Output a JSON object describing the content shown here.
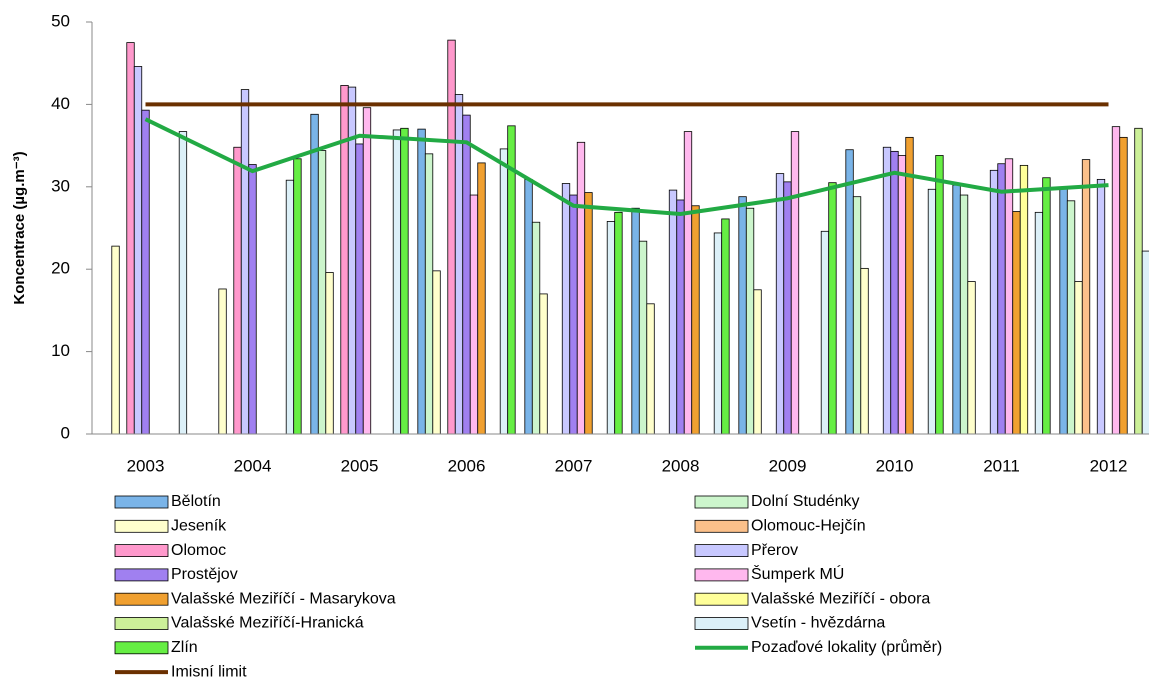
{
  "chart_data": {
    "type": "bar",
    "y_label": "Koncentrace (µg.m⁻³)",
    "categories": [
      "2003",
      "2004",
      "2005",
      "2006",
      "2007",
      "2008",
      "2009",
      "2010",
      "2011",
      "2012"
    ],
    "ylim": [
      0,
      50
    ],
    "yticks": [
      0,
      10,
      20,
      30,
      40,
      50
    ],
    "grid": false,
    "series": [
      {
        "name": "Bělotín",
        "color": "#7ab4e8",
        "values": [
          null,
          null,
          38.8,
          37.0,
          30.9,
          27.4,
          28.8,
          34.5,
          30.2,
          29.8
        ]
      },
      {
        "name": "Dolní Studénky",
        "color": "#ccf5cc",
        "values": [
          null,
          null,
          34.4,
          34.0,
          25.7,
          23.4,
          27.4,
          28.8,
          29.0,
          28.3
        ]
      },
      {
        "name": "Jeseník",
        "color": "#ffffcc",
        "values": [
          22.8,
          17.6,
          19.6,
          19.8,
          17.0,
          15.8,
          17.5,
          20.1,
          18.5,
          18.5
        ]
      },
      {
        "name": "Olomouc-Hejčín",
        "color": "#fbc08a",
        "values": [
          null,
          null,
          null,
          null,
          null,
          null,
          null,
          null,
          null,
          33.3
        ]
      },
      {
        "name": "Olomoc",
        "color": "#ff99cc",
        "values": [
          47.5,
          34.8,
          42.3,
          47.8,
          null,
          null,
          null,
          null,
          null,
          null
        ]
      },
      {
        "name": "Přerov",
        "color": "#c8c8ff",
        "values": [
          44.6,
          41.8,
          42.1,
          41.2,
          30.4,
          29.6,
          31.6,
          34.8,
          32.0,
          30.9
        ]
      },
      {
        "name": "Prostějov",
        "color": "#a080f0",
        "values": [
          39.3,
          32.7,
          35.2,
          38.7,
          29.0,
          28.4,
          30.6,
          34.3,
          32.8,
          null
        ]
      },
      {
        "name": "Šumperk MÚ",
        "color": "#ffb8ee",
        "values": [
          null,
          null,
          39.6,
          29.0,
          35.4,
          36.7,
          36.7,
          33.8,
          33.4,
          37.3
        ]
      },
      {
        "name": "Valašské Meziříčí - Masarykova",
        "color": "#f0a030",
        "values": [
          null,
          null,
          null,
          32.9,
          29.3,
          27.7,
          null,
          36.0,
          27.0,
          36.0
        ]
      },
      {
        "name": "Valašské Meziříčí - obora",
        "color": "#ffff99",
        "values": [
          null,
          null,
          null,
          null,
          null,
          null,
          null,
          null,
          32.6,
          null
        ]
      },
      {
        "name": "Valašské Meziříčí-Hranická",
        "color": "#ccf099",
        "values": [
          null,
          null,
          null,
          null,
          null,
          null,
          null,
          null,
          null,
          37.1
        ]
      },
      {
        "name": "Vsetín - hvězdárna",
        "color": "#dcf0f8",
        "values": [
          36.7,
          30.8,
          36.9,
          34.6,
          25.8,
          24.4,
          24.6,
          29.7,
          26.9,
          22.2
        ]
      },
      {
        "name": "Zlín",
        "color": "#66ee44",
        "values": [
          null,
          33.4,
          37.1,
          37.4,
          26.9,
          26.1,
          30.5,
          33.8,
          31.1,
          28.5
        ]
      },
      {
        "name": "Pozaďové lokality (průměr)",
        "type": "line",
        "color": "#22aa44",
        "values": [
          38.2,
          31.9,
          36.2,
          35.4,
          27.7,
          26.7,
          28.6,
          31.7,
          29.4,
          30.2
        ]
      },
      {
        "name": "Imisní limit",
        "type": "line",
        "color": "#6b3000",
        "values": [
          40,
          40,
          40,
          40,
          40,
          40,
          40,
          40,
          40,
          40
        ]
      }
    ]
  }
}
